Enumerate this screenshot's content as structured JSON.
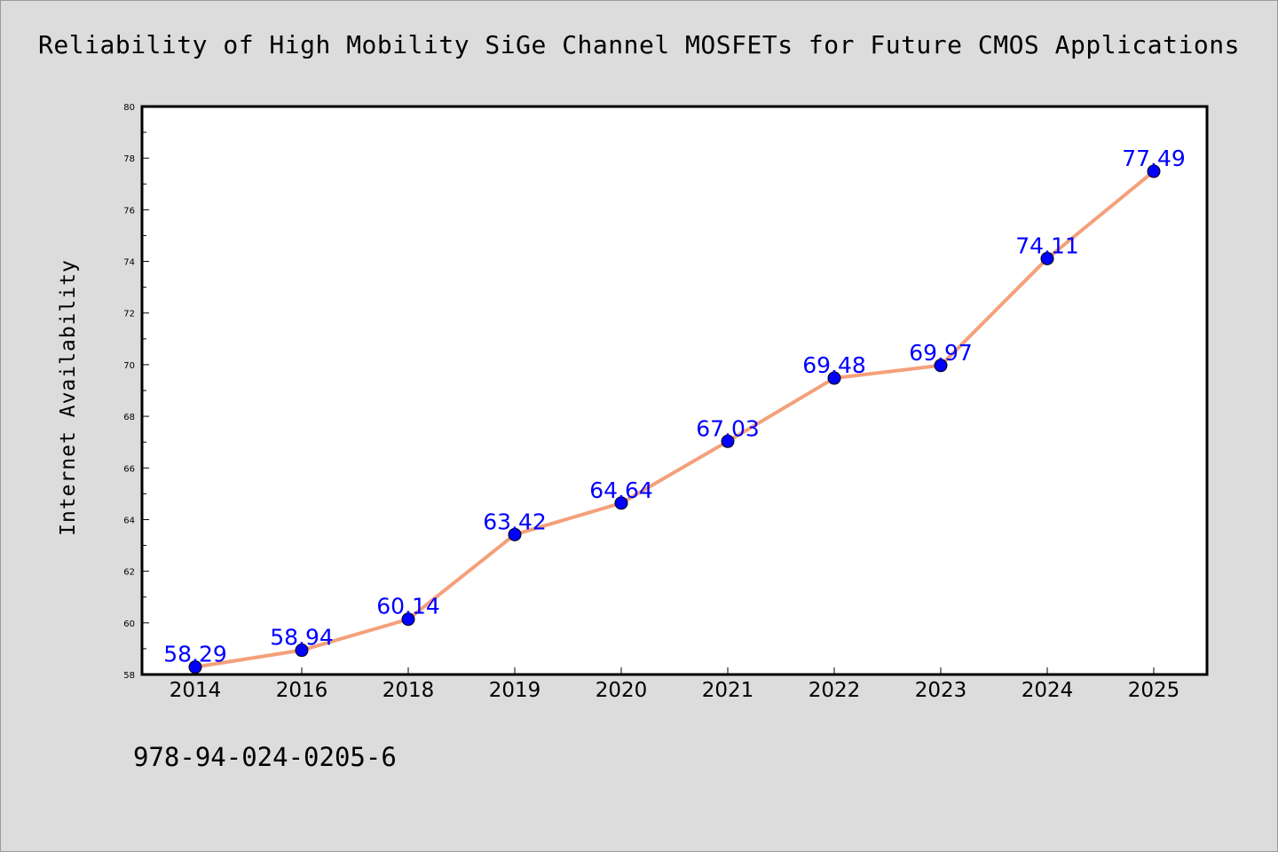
{
  "title": "Reliability of High Mobility SiGe Channel MOSFETs for Future CMOS Applications",
  "footer_code": "978-94-024-0205-6",
  "colors": {
    "background": "#dcdcdc",
    "plot_background": "#ffffff",
    "line": "#f4a07a",
    "marker": "#0000ff",
    "label": "#0000ff"
  },
  "chart_data": {
    "type": "line",
    "title": "Reliability of High Mobility SiGe Channel MOSFETs for Future CMOS Applications",
    "xlabel": "",
    "ylabel": "Internet Availability",
    "categories": [
      "2014",
      "2016",
      "2018",
      "2019",
      "2020",
      "2021",
      "2022",
      "2023",
      "2024",
      "2025"
    ],
    "series": [
      {
        "values": [
          58.29,
          58.94,
          60.14,
          63.42,
          64.64,
          67.03,
          69.48,
          69.97,
          74.11,
          77.49
        ],
        "labels": [
          "58.29",
          "58.94",
          "60.14",
          "63.42",
          "64.64",
          "67.03",
          "69.48",
          "69.97",
          "74.11",
          "77.49"
        ]
      }
    ],
    "ylim": [
      58,
      80
    ],
    "yticks": [
      "58",
      "60",
      "62",
      "64",
      "66",
      "68",
      "70",
      "72",
      "74",
      "76",
      "78",
      "80"
    ],
    "grid": false,
    "legend": "none"
  }
}
